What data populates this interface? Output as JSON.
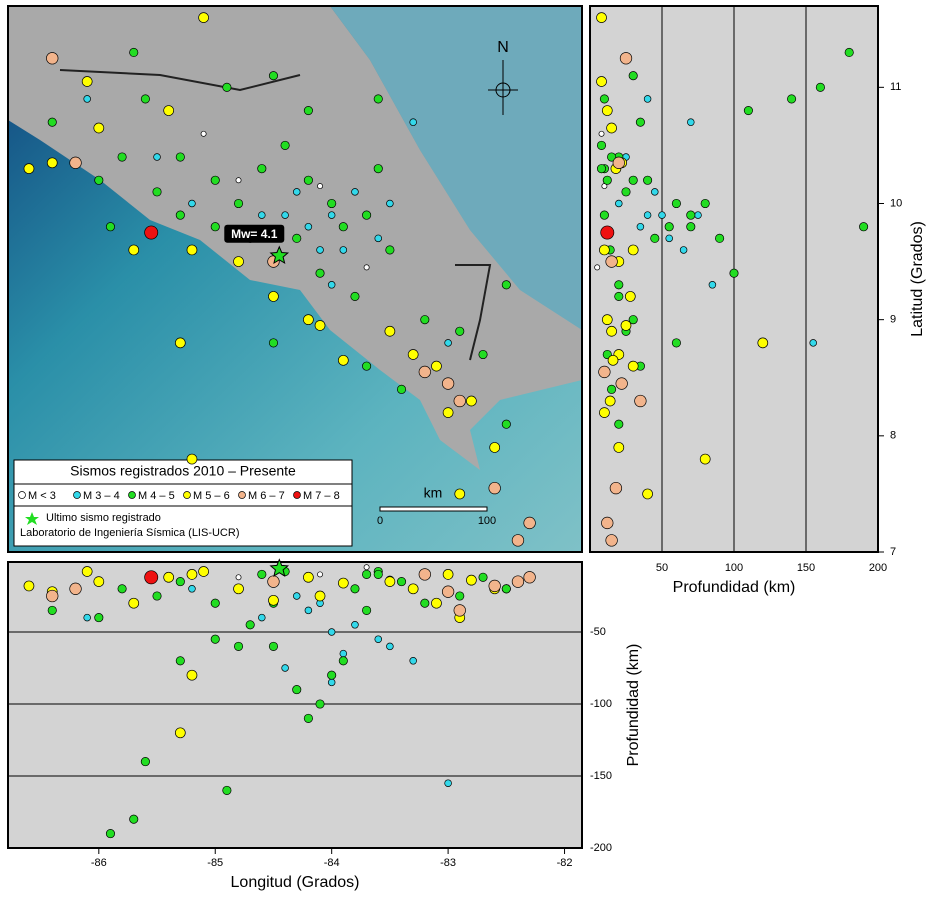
{
  "map": {
    "north_label": "N",
    "scale_unit": "km",
    "scale_ticks": [
      0,
      100
    ],
    "last_event_label": "Mw= 4.1",
    "legend": {
      "title": "Sismos registrados 2010 – Presente",
      "classes": [
        {
          "label": "M < 3",
          "color": "#ffffff"
        },
        {
          "label": "M 3 – 4",
          "color": "#33d8ea"
        },
        {
          "label": "M 4 – 5",
          "color": "#22dd22"
        },
        {
          "label": "M 5 – 6",
          "color": "#ffff00"
        },
        {
          "label": "M 6 – 7",
          "color": "#f2b48c"
        },
        {
          "label": "M 7 – 8",
          "color": "#ee1111"
        }
      ],
      "star_label": "Ultimo sismo registrado",
      "credit": "Laboratorio de Ingeniería Sísmica (LIS-UCR)"
    }
  },
  "lat_depth": {
    "xlabel": "Profundidad (km)",
    "ylabel": "Latitud (Grados)",
    "xlim": [
      0,
      200
    ],
    "xticks": [
      50,
      100,
      150,
      200
    ],
    "ylim": [
      7,
      11.7
    ],
    "yticks": [
      7,
      8,
      9,
      10,
      11
    ]
  },
  "lon_depth": {
    "xlabel": "Longitud (Grados)",
    "ylabel": "Profundidad (km)",
    "xlim": [
      -86.78,
      -81.85
    ],
    "xticks": [
      -86,
      -85,
      -84,
      -83,
      -82
    ],
    "ylim": [
      -200,
      0
    ],
    "yticks": [
      -50,
      -100,
      -150,
      -200
    ]
  },
  "last_event": {
    "lon": -84.45,
    "lat": 9.55,
    "depth": 6
  },
  "events": [
    {
      "lon": -85.55,
      "lat": 9.75,
      "depth": 12,
      "m": 5
    },
    {
      "lon": -86.4,
      "lat": 11.25,
      "depth": 25,
      "m": 4
    },
    {
      "lon": -86.2,
      "lat": 10.35,
      "depth": 20,
      "m": 4
    },
    {
      "lon": -84.5,
      "lat": 9.5,
      "depth": 15,
      "m": 4
    },
    {
      "lon": -83.2,
      "lat": 8.55,
      "depth": 10,
      "m": 4
    },
    {
      "lon": -83.0,
      "lat": 8.45,
      "depth": 22,
      "m": 4
    },
    {
      "lon": -82.6,
      "lat": 7.55,
      "depth": 18,
      "m": 4
    },
    {
      "lon": -82.3,
      "lat": 7.25,
      "depth": 12,
      "m": 4
    },
    {
      "lon": -82.4,
      "lat": 7.1,
      "depth": 15,
      "m": 4
    },
    {
      "lon": -82.9,
      "lat": 8.3,
      "depth": 35,
      "m": 4
    },
    {
      "lon": -86.6,
      "lat": 10.3,
      "depth": 18,
      "m": 3
    },
    {
      "lon": -86.4,
      "lat": 10.35,
      "depth": 22,
      "m": 3
    },
    {
      "lon": -86.0,
      "lat": 10.65,
      "depth": 15,
      "m": 3
    },
    {
      "lon": -85.7,
      "lat": 9.6,
      "depth": 30,
      "m": 3
    },
    {
      "lon": -85.2,
      "lat": 9.6,
      "depth": 10,
      "m": 3
    },
    {
      "lon": -84.8,
      "lat": 9.5,
      "depth": 20,
      "m": 3
    },
    {
      "lon": -84.2,
      "lat": 9.0,
      "depth": 12,
      "m": 3
    },
    {
      "lon": -84.1,
      "lat": 8.95,
      "depth": 25,
      "m": 3
    },
    {
      "lon": -83.5,
      "lat": 8.9,
      "depth": 15,
      "m": 3
    },
    {
      "lon": -83.3,
      "lat": 8.7,
      "depth": 20,
      "m": 3
    },
    {
      "lon": -83.1,
      "lat": 8.6,
      "depth": 30,
      "m": 3
    },
    {
      "lon": -83.0,
      "lat": 8.2,
      "depth": 10,
      "m": 3
    },
    {
      "lon": -82.8,
      "lat": 8.3,
      "depth": 14,
      "m": 3
    },
    {
      "lon": -82.6,
      "lat": 7.9,
      "depth": 20,
      "m": 3
    },
    {
      "lon": -83.9,
      "lat": 8.65,
      "depth": 16,
      "m": 3
    },
    {
      "lon": -84.5,
      "lat": 9.2,
      "depth": 28,
      "m": 3
    },
    {
      "lon": -86.1,
      "lat": 11.05,
      "depth": 8,
      "m": 3
    },
    {
      "lon": -85.1,
      "lat": 11.6,
      "depth": 8,
      "m": 3
    },
    {
      "lon": -85.2,
      "lat": 7.8,
      "depth": 80,
      "m": 3
    },
    {
      "lon": -85.4,
      "lat": 10.8,
      "depth": 12,
      "m": 3
    },
    {
      "lon": -82.9,
      "lat": 7.5,
      "depth": 40,
      "m": 3
    },
    {
      "lon": -85.3,
      "lat": 8.8,
      "depth": 120,
      "m": 3
    },
    {
      "lon": -86.4,
      "lat": 10.7,
      "depth": 35,
      "m": 2
    },
    {
      "lon": -86.0,
      "lat": 10.2,
      "depth": 40,
      "m": 2
    },
    {
      "lon": -85.8,
      "lat": 10.4,
      "depth": 20,
      "m": 2
    },
    {
      "lon": -85.5,
      "lat": 10.1,
      "depth": 25,
      "m": 2
    },
    {
      "lon": -85.3,
      "lat": 10.4,
      "depth": 15,
      "m": 2
    },
    {
      "lon": -85.0,
      "lat": 10.2,
      "depth": 30,
      "m": 2
    },
    {
      "lon": -84.8,
      "lat": 10.0,
      "depth": 60,
      "m": 2
    },
    {
      "lon": -84.6,
      "lat": 10.3,
      "depth": 10,
      "m": 2
    },
    {
      "lon": -84.4,
      "lat": 10.5,
      "depth": 8,
      "m": 2
    },
    {
      "lon": -84.2,
      "lat": 10.2,
      "depth": 12,
      "m": 2
    },
    {
      "lon": -84.0,
      "lat": 10.0,
      "depth": 80,
      "m": 2
    },
    {
      "lon": -83.9,
      "lat": 9.8,
      "depth": 70,
      "m": 2
    },
    {
      "lon": -83.7,
      "lat": 9.9,
      "depth": 10,
      "m": 2
    },
    {
      "lon": -83.6,
      "lat": 10.3,
      "depth": 8,
      "m": 2
    },
    {
      "lon": -83.5,
      "lat": 9.6,
      "depth": 14,
      "m": 2
    },
    {
      "lon": -84.3,
      "lat": 9.7,
      "depth": 90,
      "m": 2
    },
    {
      "lon": -84.7,
      "lat": 9.7,
      "depth": 45,
      "m": 2
    },
    {
      "lon": -85.0,
      "lat": 9.8,
      "depth": 55,
      "m": 2
    },
    {
      "lon": -85.3,
      "lat": 9.9,
      "depth": 70,
      "m": 2
    },
    {
      "lon": -84.1,
      "lat": 9.4,
      "depth": 100,
      "m": 2
    },
    {
      "lon": -83.8,
      "lat": 9.2,
      "depth": 20,
      "m": 2
    },
    {
      "lon": -83.2,
      "lat": 9.0,
      "depth": 30,
      "m": 2
    },
    {
      "lon": -82.9,
      "lat": 8.9,
      "depth": 25,
      "m": 2
    },
    {
      "lon": -83.4,
      "lat": 8.4,
      "depth": 15,
      "m": 2
    },
    {
      "lon": -82.7,
      "lat": 8.7,
      "depth": 12,
      "m": 2
    },
    {
      "lon": -82.5,
      "lat": 8.1,
      "depth": 20,
      "m": 2
    },
    {
      "lon": -83.7,
      "lat": 8.6,
      "depth": 35,
      "m": 2
    },
    {
      "lon": -84.5,
      "lat": 8.8,
      "depth": 60,
      "m": 2
    },
    {
      "lon": -85.6,
      "lat": 10.9,
      "depth": 140,
      "m": 2
    },
    {
      "lon": -84.9,
      "lat": 11.0,
      "depth": 160,
      "m": 2
    },
    {
      "lon": -85.7,
      "lat": 11.3,
      "depth": 180,
      "m": 2
    },
    {
      "lon": -84.5,
      "lat": 11.1,
      "depth": 30,
      "m": 2
    },
    {
      "lon": -85.9,
      "lat": 9.8,
      "depth": 190,
      "m": 2
    },
    {
      "lon": -83.6,
      "lat": 10.9,
      "depth": 10,
      "m": 2
    },
    {
      "lon": -82.5,
      "lat": 9.3,
      "depth": 20,
      "m": 2
    },
    {
      "lon": -84.2,
      "lat": 10.8,
      "depth": 110,
      "m": 2
    },
    {
      "lon": -84.0,
      "lat": 9.9,
      "depth": 50,
      "m": 1
    },
    {
      "lon": -84.2,
      "lat": 9.8,
      "depth": 35,
      "m": 1
    },
    {
      "lon": -83.9,
      "lat": 9.6,
      "depth": 65,
      "m": 1
    },
    {
      "lon": -83.8,
      "lat": 10.1,
      "depth": 45,
      "m": 1
    },
    {
      "lon": -84.4,
      "lat": 9.9,
      "depth": 75,
      "m": 1
    },
    {
      "lon": -84.6,
      "lat": 9.9,
      "depth": 40,
      "m": 1
    },
    {
      "lon": -83.6,
      "lat": 9.7,
      "depth": 55,
      "m": 1
    },
    {
      "lon": -84.1,
      "lat": 9.6,
      "depth": 30,
      "m": 1
    },
    {
      "lon": -83.5,
      "lat": 10.0,
      "depth": 60,
      "m": 1
    },
    {
      "lon": -84.3,
      "lat": 10.1,
      "depth": 25,
      "m": 1
    },
    {
      "lon": -84.0,
      "lat": 9.3,
      "depth": 85,
      "m": 1
    },
    {
      "lon": -85.2,
      "lat": 10.0,
      "depth": 20,
      "m": 1
    },
    {
      "lon": -86.1,
      "lat": 10.9,
      "depth": 40,
      "m": 1
    },
    {
      "lon": -83.3,
      "lat": 10.7,
      "depth": 70,
      "m": 1
    },
    {
      "lon": -83.0,
      "lat": 8.8,
      "depth": 155,
      "m": 1
    },
    {
      "lon": -85.5,
      "lat": 10.4,
      "depth": 25,
      "m": 1
    },
    {
      "lon": -84.1,
      "lat": 10.15,
      "depth": 10,
      "m": 0
    },
    {
      "lon": -83.7,
      "lat": 9.45,
      "depth": 5,
      "m": 0
    },
    {
      "lon": -85.1,
      "lat": 10.6,
      "depth": 8,
      "m": 0
    },
    {
      "lon": -84.8,
      "lat": 10.2,
      "depth": 12,
      "m": 0
    }
  ]
}
